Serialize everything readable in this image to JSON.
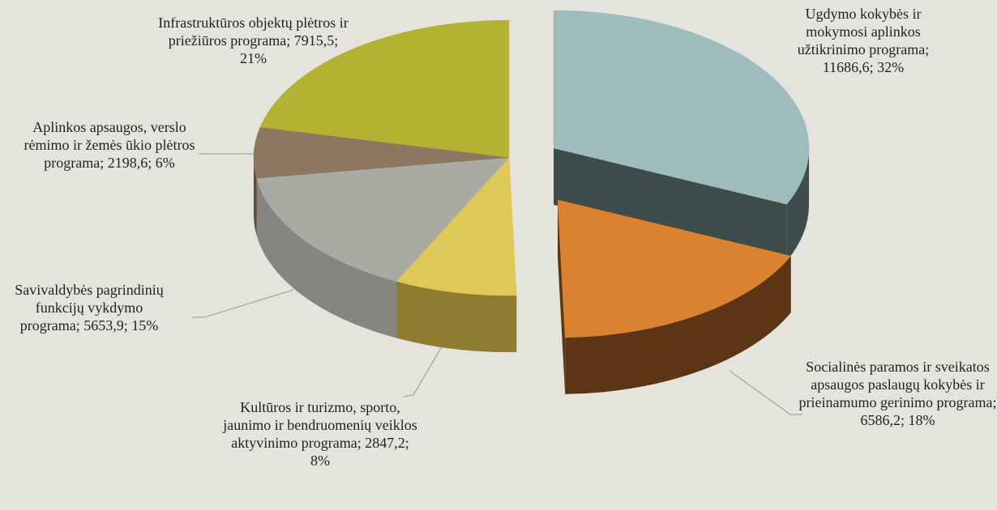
{
  "chart_data": {
    "type": "pie3d",
    "categories": [
      "Ugdymo kokybės ir mokymosi aplinkos užtikrinimo programa; 11686,6; 32%",
      "Socialinės paramos ir sveikatos apsaugos paslaugų kokybės ir prieinamumo gerinimo programa; 6586,2; 18%",
      "Kultūros ir turizmo, sporto, jaunimo ir bendruomenių veiklos aktyvinimo programa; 2847,2; 8%",
      "Savivaldybės pagrindinių funkcijų vykdymo programa; 5653,9; 15%",
      "Aplinkos apsaugos, verslo rėmimo ir žemės ūkio plėtros programa; 2198,6; 6%",
      "Infrastruktūros objektų plėtros ir priežiūros programa; 7915,5; 21%"
    ],
    "values": [
      11686.6,
      6586.2,
      2847.2,
      5653.9,
      2198.6,
      7915.5
    ],
    "colors": [
      "#9dbcbb",
      "#db8230",
      "#dfc75a",
      "#a9aba3",
      "#8e7760",
      "#b4b233"
    ],
    "side_colors": [
      "#3e4c4c",
      "#5c3614",
      "#8f7c30",
      "#85867f",
      "#5e4d3d",
      "#77761f"
    ]
  }
}
